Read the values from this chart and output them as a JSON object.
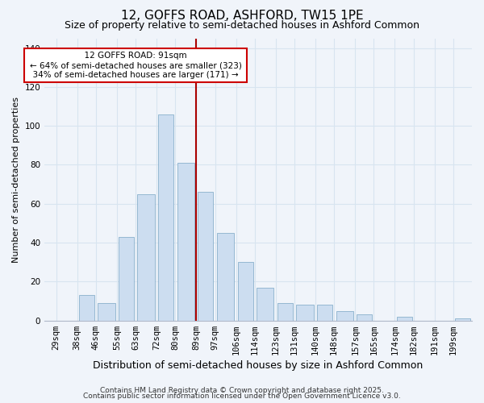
{
  "title_line1": "12, GOFFS ROAD, ASHFORD, TW15 1PE",
  "title_line2": "Size of property relative to semi-detached houses in Ashford Common",
  "xlabel": "Distribution of semi-detached houses by size in Ashford Common",
  "ylabel": "Number of semi-detached properties",
  "bar_edges": [
    29,
    38,
    46,
    55,
    63,
    72,
    80,
    89,
    97,
    106,
    114,
    123,
    131,
    140,
    148,
    157,
    165,
    174,
    182,
    191,
    199
  ],
  "bar_heights": [
    0,
    13,
    9,
    43,
    65,
    106,
    81,
    66,
    45,
    30,
    17,
    9,
    8,
    8,
    5,
    3,
    0,
    2,
    0,
    0,
    1
  ],
  "bar_color": "#ccddf0",
  "bar_edgecolor": "#8ab0cc",
  "vline_x": 89,
  "vline_color": "#aa0000",
  "ylim": [
    0,
    145
  ],
  "yticks": [
    0,
    20,
    40,
    60,
    80,
    100,
    120,
    140
  ],
  "annotation_title": "12 GOFFS ROAD: 91sqm",
  "annotation_line1": "← 64% of semi-detached houses are smaller (323)",
  "annotation_line2": "34% of semi-detached houses are larger (171) →",
  "annotation_box_color": "#ffffff",
  "annotation_box_edgecolor": "#cc0000",
  "footnote1": "Contains HM Land Registry data © Crown copyright and database right 2025.",
  "footnote2": "Contains public sector information licensed under the Open Government Licence v3.0.",
  "bg_color": "#f0f4fa",
  "grid_color": "#d8e4f0",
  "title_fontsize": 11,
  "subtitle_fontsize": 9,
  "xlabel_fontsize": 9,
  "ylabel_fontsize": 8,
  "tick_label_fontsize": 7.5,
  "footnote_fontsize": 6.5
}
